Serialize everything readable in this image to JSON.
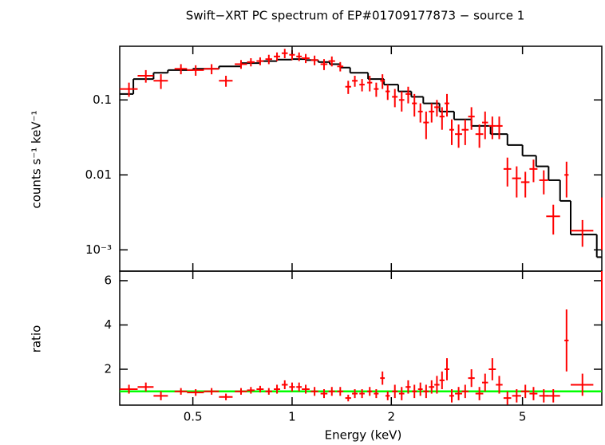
{
  "chart_data": [
    {
      "type": "scatter",
      "title": "Swift−XRT PC spectrum of EP#01709177873 − source 1",
      "y_label": "counts s⁻¹ keV⁻¹",
      "xlog": true,
      "ylog": true,
      "xlim": [
        0.3,
        8.7
      ],
      "ylim": [
        0.00052,
        0.52
      ],
      "yticks": [
        0.1,
        0.01,
        {
          "value": 0.001,
          "label": "10⁻³"
        }
      ],
      "series": [
        {
          "color": "#ff0000",
          "x": [
            0.32,
            0.36,
            0.4,
            0.46,
            0.51,
            0.57,
            0.63,
            0.7,
            0.75,
            0.8,
            0.85,
            0.9,
            0.95,
            1.0,
            1.05,
            1.1,
            1.17,
            1.25,
            1.32,
            1.4,
            1.48,
            1.55,
            1.63,
            1.72,
            1.8,
            1.88,
            1.95,
            2.05,
            2.15,
            2.25,
            2.35,
            2.45,
            2.55,
            2.65,
            2.75,
            2.85,
            2.95,
            3.05,
            3.2,
            3.35,
            3.5,
            3.7,
            3.85,
            4.05,
            4.25,
            4.5,
            4.8,
            5.1,
            5.4,
            5.8,
            6.2,
            6.8,
            7.6,
            8.7
          ],
          "xerr": [
            0.02,
            0.02,
            0.02,
            0.02,
            0.03,
            0.03,
            0.03,
            0.03,
            0.02,
            0.02,
            0.02,
            0.02,
            0.02,
            0.02,
            0.02,
            0.03,
            0.03,
            0.03,
            0.03,
            0.03,
            0.03,
            0.03,
            0.03,
            0.03,
            0.03,
            0.03,
            0.03,
            0.04,
            0.04,
            0.04,
            0.04,
            0.04,
            0.05,
            0.05,
            0.05,
            0.05,
            0.05,
            0.05,
            0.08,
            0.08,
            0.08,
            0.1,
            0.08,
            0.1,
            0.1,
            0.12,
            0.15,
            0.15,
            0.15,
            0.18,
            0.3,
            0.1,
            0.6,
            0.05
          ],
          "values": [
            0.14,
            0.21,
            0.18,
            0.26,
            0.25,
            0.26,
            0.18,
            0.3,
            0.32,
            0.33,
            0.35,
            0.38,
            0.42,
            0.4,
            0.38,
            0.36,
            0.34,
            0.3,
            0.33,
            0.28,
            0.15,
            0.18,
            0.16,
            0.17,
            0.14,
            0.18,
            0.13,
            0.11,
            0.1,
            0.12,
            0.09,
            0.07,
            0.05,
            0.07,
            0.08,
            0.06,
            0.09,
            0.04,
            0.035,
            0.04,
            0.06,
            0.035,
            0.05,
            0.045,
            0.045,
            0.012,
            0.009,
            0.008,
            0.012,
            0.0085,
            0.0028,
            0.01,
            0.0018,
            0.003
          ],
          "errors": [
            0.03,
            0.04,
            0.04,
            0.04,
            0.04,
            0.04,
            0.03,
            0.04,
            0.04,
            0.04,
            0.05,
            0.05,
            0.06,
            0.06,
            0.05,
            0.05,
            0.05,
            0.05,
            0.05,
            0.04,
            0.03,
            0.03,
            0.03,
            0.04,
            0.03,
            0.04,
            0.03,
            0.03,
            0.03,
            0.03,
            0.03,
            0.02,
            0.02,
            0.02,
            0.02,
            0.02,
            0.03,
            0.015,
            0.012,
            0.015,
            0.02,
            0.012,
            0.02,
            0.015,
            0.015,
            0.005,
            0.004,
            0.003,
            0.004,
            0.003,
            0.0012,
            0.005,
            0.0007,
            0.002
          ]
        }
      ],
      "model": {
        "color": "#000000",
        "x": [
          0.3,
          0.33,
          0.38,
          0.42,
          0.5,
          0.6,
          0.7,
          0.8,
          0.9,
          1.0,
          1.1,
          1.2,
          1.3,
          1.4,
          1.5,
          1.7,
          1.9,
          2.1,
          2.3,
          2.5,
          2.8,
          3.1,
          3.5,
          4.0,
          4.5,
          5.0,
          5.5,
          6.0,
          6.5,
          7.0,
          8.4
        ],
        "values": [
          0.12,
          0.19,
          0.23,
          0.25,
          0.26,
          0.28,
          0.31,
          0.33,
          0.345,
          0.35,
          0.34,
          0.32,
          0.3,
          0.27,
          0.23,
          0.19,
          0.16,
          0.13,
          0.11,
          0.09,
          0.07,
          0.055,
          0.045,
          0.035,
          0.025,
          0.018,
          0.013,
          0.0085,
          0.0045,
          0.0016,
          0.0008
        ]
      }
    },
    {
      "type": "scatter",
      "x_label": "Energy (keV)",
      "y_label": "ratio",
      "xlog": true,
      "xlim": [
        0.3,
        8.7
      ],
      "ylim": [
        0.38,
        6.43
      ],
      "xticks": [
        0.5,
        1,
        2,
        5
      ],
      "yticks": [
        2,
        4,
        6
      ],
      "reference_line": {
        "value": 1,
        "color": "#00ff00"
      },
      "series": [
        {
          "color": "#ff0000",
          "x": [
            0.32,
            0.36,
            0.4,
            0.46,
            0.51,
            0.57,
            0.63,
            0.7,
            0.75,
            0.8,
            0.85,
            0.9,
            0.95,
            1.0,
            1.05,
            1.1,
            1.17,
            1.25,
            1.32,
            1.4,
            1.48,
            1.55,
            1.63,
            1.72,
            1.8,
            1.88,
            1.95,
            2.05,
            2.15,
            2.25,
            2.35,
            2.45,
            2.55,
            2.65,
            2.75,
            2.85,
            2.95,
            3.05,
            3.2,
            3.35,
            3.5,
            3.7,
            3.85,
            4.05,
            4.25,
            4.5,
            4.8,
            5.1,
            5.4,
            5.8,
            6.2,
            6.8,
            7.6,
            8.7
          ],
          "xerr": [
            0.02,
            0.02,
            0.02,
            0.02,
            0.03,
            0.03,
            0.03,
            0.03,
            0.02,
            0.02,
            0.02,
            0.02,
            0.02,
            0.02,
            0.02,
            0.03,
            0.03,
            0.03,
            0.03,
            0.03,
            0.03,
            0.03,
            0.03,
            0.03,
            0.03,
            0.03,
            0.03,
            0.04,
            0.04,
            0.04,
            0.04,
            0.04,
            0.05,
            0.05,
            0.05,
            0.05,
            0.05,
            0.05,
            0.08,
            0.08,
            0.08,
            0.1,
            0.08,
            0.1,
            0.1,
            0.12,
            0.15,
            0.15,
            0.15,
            0.18,
            0.3,
            0.1,
            0.6,
            0.05
          ],
          "values": [
            1.1,
            1.2,
            0.8,
            1.0,
            0.95,
            1.0,
            0.75,
            1.0,
            1.05,
            1.1,
            1.0,
            1.1,
            1.3,
            1.2,
            1.2,
            1.1,
            1.0,
            0.9,
            1.0,
            1.0,
            0.7,
            0.9,
            0.9,
            1.0,
            0.9,
            1.6,
            0.8,
            1.0,
            0.9,
            1.2,
            1.0,
            1.1,
            1.0,
            1.2,
            1.3,
            1.5,
            2.0,
            0.8,
            0.9,
            1.0,
            1.6,
            0.9,
            1.4,
            2.0,
            1.3,
            0.7,
            0.8,
            1.0,
            0.9,
            0.8,
            0.8,
            3.3,
            1.3,
            6.2
          ],
          "errors": [
            0.2,
            0.2,
            0.2,
            0.15,
            0.15,
            0.15,
            0.15,
            0.15,
            0.15,
            0.15,
            0.15,
            0.2,
            0.2,
            0.2,
            0.2,
            0.2,
            0.2,
            0.2,
            0.2,
            0.2,
            0.15,
            0.2,
            0.2,
            0.2,
            0.2,
            0.3,
            0.2,
            0.3,
            0.3,
            0.3,
            0.3,
            0.3,
            0.3,
            0.3,
            0.4,
            0.4,
            0.5,
            0.3,
            0.3,
            0.3,
            0.4,
            0.3,
            0.4,
            0.5,
            0.4,
            0.3,
            0.3,
            0.3,
            0.3,
            0.3,
            0.3,
            1.4,
            0.5,
            2.0
          ]
        }
      ]
    }
  ]
}
